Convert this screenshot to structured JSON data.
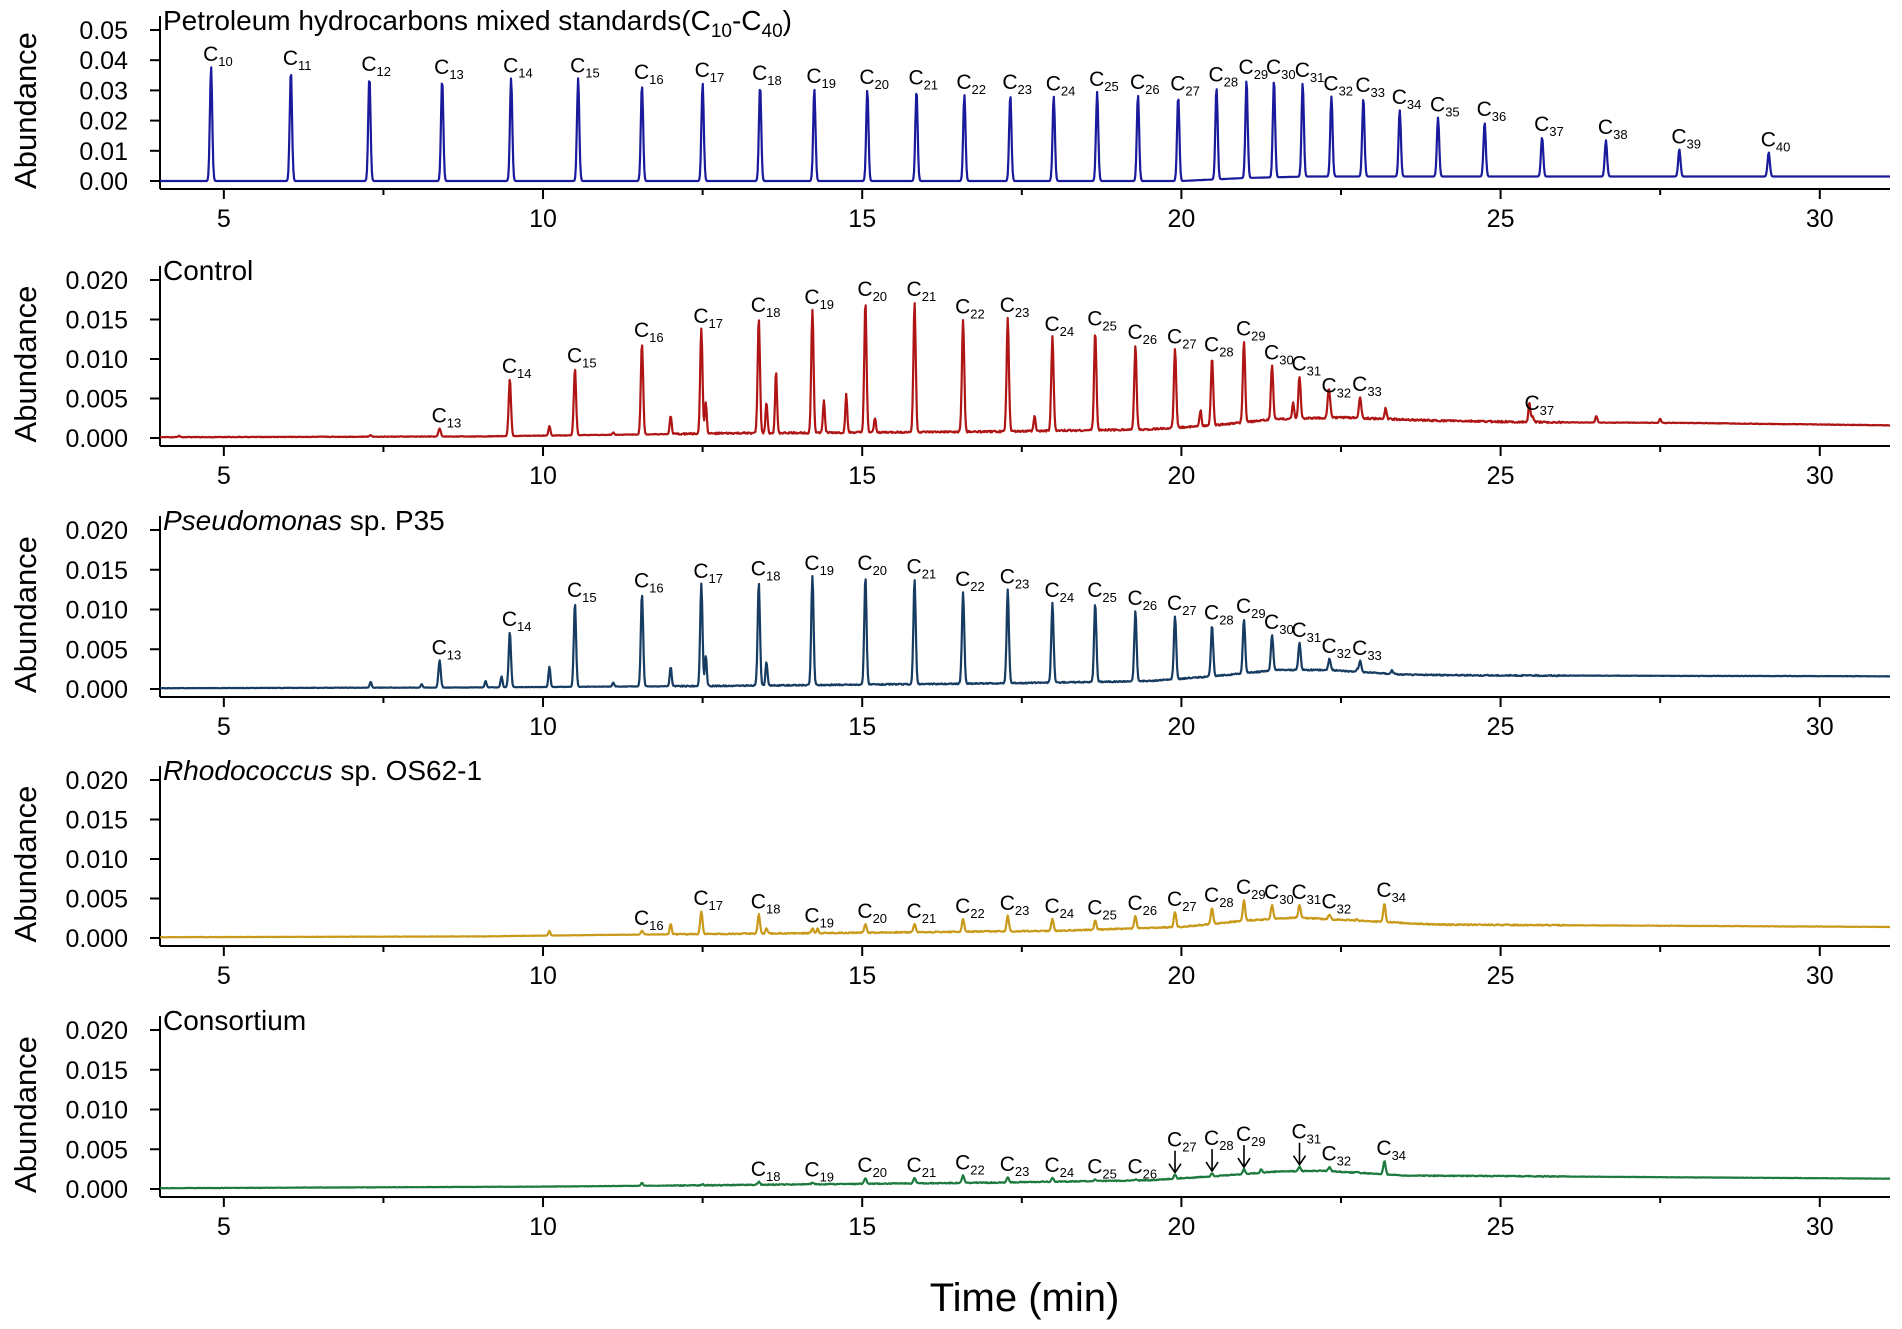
{
  "figure": {
    "x_axis_label": "Time (min)",
    "y_axis_label": "Abundance"
  },
  "chart_data": [
    {
      "type": "line",
      "title": "Petroleum hydrocarbons mixed standards(C10-C40)",
      "title_parts": [
        "Petroleum hydrocarbons mixed standards(C",
        "10",
        "-C",
        "40",
        ")"
      ],
      "title_italic": "",
      "color": "#1a1a9c",
      "xlabel": "Time (min)",
      "ylabel": "Abundance",
      "xlim": [
        4,
        31.1
      ],
      "ylim": [
        0,
        0.05
      ],
      "xticks": [
        5,
        10,
        15,
        20,
        25,
        30
      ],
      "yticks": [
        "0.00",
        "0.01",
        "0.02",
        "0.03",
        "0.04",
        "0.05"
      ],
      "baseline": [
        [
          4,
          0
        ],
        [
          20,
          0.0
        ],
        [
          21,
          0.001
        ],
        [
          22,
          0.0015
        ],
        [
          31.1,
          0.0015
        ]
      ],
      "noise": 0,
      "small_peaks": [],
      "peaks": [
        {
          "label": "10",
          "x": 4.8,
          "y": 0.0378
        },
        {
          "label": "11",
          "x": 6.05,
          "y": 0.0365
        },
        {
          "label": "12",
          "x": 7.28,
          "y": 0.0345
        },
        {
          "label": "13",
          "x": 8.42,
          "y": 0.0335
        },
        {
          "label": "14",
          "x": 9.5,
          "y": 0.034
        },
        {
          "label": "15",
          "x": 10.55,
          "y": 0.034
        },
        {
          "label": "16",
          "x": 11.55,
          "y": 0.0318
        },
        {
          "label": "17",
          "x": 12.5,
          "y": 0.0325
        },
        {
          "label": "18",
          "x": 13.4,
          "y": 0.0315
        },
        {
          "label": "19",
          "x": 14.25,
          "y": 0.0305
        },
        {
          "label": "20",
          "x": 15.08,
          "y": 0.0302
        },
        {
          "label": "21",
          "x": 15.85,
          "y": 0.03
        },
        {
          "label": "22",
          "x": 16.6,
          "y": 0.0285
        },
        {
          "label": "23",
          "x": 17.32,
          "y": 0.0285
        },
        {
          "label": "24",
          "x": 18.0,
          "y": 0.028
        },
        {
          "label": "25",
          "x": 18.68,
          "y": 0.0295
        },
        {
          "label": "26",
          "x": 19.32,
          "y": 0.0285
        },
        {
          "label": "27",
          "x": 19.95,
          "y": 0.028
        },
        {
          "label": "28",
          "x": 20.55,
          "y": 0.031
        },
        {
          "label": "29",
          "x": 21.02,
          "y": 0.0335
        },
        {
          "label": "30",
          "x": 21.45,
          "y": 0.0335
        },
        {
          "label": "31",
          "x": 21.9,
          "y": 0.0325
        },
        {
          "label": "32",
          "x": 22.35,
          "y": 0.028
        },
        {
          "label": "33",
          "x": 22.85,
          "y": 0.0275
        },
        {
          "label": "34",
          "x": 23.42,
          "y": 0.0235
        },
        {
          "label": "35",
          "x": 24.02,
          "y": 0.021
        },
        {
          "label": "36",
          "x": 24.75,
          "y": 0.0195
        },
        {
          "label": "37",
          "x": 25.65,
          "y": 0.0145
        },
        {
          "label": "38",
          "x": 26.65,
          "y": 0.0135
        },
        {
          "label": "39",
          "x": 27.8,
          "y": 0.0105
        },
        {
          "label": "40",
          "x": 29.2,
          "y": 0.0095
        }
      ]
    },
    {
      "type": "line",
      "title": "Control",
      "title_parts": [
        "Control"
      ],
      "title_italic": "",
      "color": "#b01515",
      "xlabel": "Time (min)",
      "ylabel": "Abundance",
      "xlim": [
        4,
        31.1
      ],
      "ylim": [
        0,
        0.02
      ],
      "xticks": [
        5,
        10,
        15,
        20,
        25,
        30
      ],
      "yticks": [
        "0.000",
        "0.005",
        "0.010",
        "0.015",
        "0.020"
      ],
      "baseline": [
        [
          4,
          0.0001
        ],
        [
          9,
          0.0002
        ],
        [
          13,
          0.0006
        ],
        [
          17,
          0.0008
        ],
        [
          19.5,
          0.0011
        ],
        [
          20.5,
          0.0016
        ],
        [
          21.5,
          0.0024
        ],
        [
          22.5,
          0.0026
        ],
        [
          24,
          0.0022
        ],
        [
          25.5,
          0.002
        ],
        [
          28,
          0.0019
        ],
        [
          31.1,
          0.0016
        ]
      ],
      "noise": 0.00022,
      "small_peaks": [
        {
          "x": 4.3,
          "y": 0.0003
        },
        {
          "x": 7.3,
          "y": 0.0004
        },
        {
          "x": 10.1,
          "y": 0.0015
        },
        {
          "x": 11.1,
          "y": 0.0007
        },
        {
          "x": 12.0,
          "y": 0.0028
        },
        {
          "x": 12.55,
          "y": 0.0045
        },
        {
          "x": 13.5,
          "y": 0.0045
        },
        {
          "x": 13.65,
          "y": 0.0085
        },
        {
          "x": 14.4,
          "y": 0.0048
        },
        {
          "x": 14.75,
          "y": 0.0055
        },
        {
          "x": 15.2,
          "y": 0.0025
        },
        {
          "x": 17.7,
          "y": 0.0028
        },
        {
          "x": 20.3,
          "y": 0.0035
        },
        {
          "x": 21.75,
          "y": 0.0045
        },
        {
          "x": 22.3,
          "y": 0.0045
        },
        {
          "x": 23.2,
          "y": 0.0038
        },
        {
          "x": 25.45,
          "y": 0.0045
        },
        {
          "x": 26.5,
          "y": 0.0028
        },
        {
          "x": 27.5,
          "y": 0.0024
        }
      ],
      "peaks": [
        {
          "label": "13",
          "x": 8.38,
          "y": 0.0012
        },
        {
          "label": "14",
          "x": 9.48,
          "y": 0.0075
        },
        {
          "label": "15",
          "x": 10.5,
          "y": 0.0088
        },
        {
          "label": "16",
          "x": 11.55,
          "y": 0.012
        },
        {
          "label": "17",
          "x": 12.48,
          "y": 0.0138
        },
        {
          "label": "18",
          "x": 13.38,
          "y": 0.0152
        },
        {
          "label": "19",
          "x": 14.22,
          "y": 0.0162
        },
        {
          "label": "20",
          "x": 15.05,
          "y": 0.0172
        },
        {
          "label": "21",
          "x": 15.82,
          "y": 0.0172
        },
        {
          "label": "22",
          "x": 16.58,
          "y": 0.015
        },
        {
          "label": "23",
          "x": 17.28,
          "y": 0.0152
        },
        {
          "label": "24",
          "x": 17.98,
          "y": 0.0128
        },
        {
          "label": "25",
          "x": 18.65,
          "y": 0.0135
        },
        {
          "label": "26",
          "x": 19.28,
          "y": 0.0118
        },
        {
          "label": "27",
          "x": 19.9,
          "y": 0.0112
        },
        {
          "label": "28",
          "x": 20.48,
          "y": 0.0102
        },
        {
          "label": "29",
          "x": 20.98,
          "y": 0.0122
        },
        {
          "label": "30",
          "x": 21.42,
          "y": 0.0092
        },
        {
          "label": "31",
          "x": 21.85,
          "y": 0.0078
        },
        {
          "label": "32",
          "x": 22.32,
          "y": 0.005
        },
        {
          "label": "33",
          "x": 22.8,
          "y": 0.0052
        },
        {
          "label": "37",
          "x": 25.5,
          "y": 0.0028
        }
      ]
    },
    {
      "type": "line",
      "title": "Pseudomonas sp. P35",
      "title_parts": [
        "Pseudomonas",
        " sp. P35"
      ],
      "title_italic": "Pseudomonas",
      "color": "#173c62",
      "xlabel": "Time (min)",
      "ylabel": "Abundance",
      "xlim": [
        4,
        31.1
      ],
      "ylim": [
        0,
        0.02
      ],
      "xticks": [
        5,
        10,
        15,
        20,
        25,
        30
      ],
      "yticks": [
        "0.000",
        "0.005",
        "0.010",
        "0.015",
        "0.020"
      ],
      "baseline": [
        [
          4,
          0.0001
        ],
        [
          9,
          0.0002
        ],
        [
          13,
          0.0004
        ],
        [
          17,
          0.0007
        ],
        [
          19.5,
          0.001
        ],
        [
          20.5,
          0.0016
        ],
        [
          21.5,
          0.0024
        ],
        [
          22.3,
          0.0024
        ],
        [
          23.5,
          0.0018
        ],
        [
          25,
          0.0017
        ],
        [
          31.1,
          0.0016
        ]
      ],
      "noise": 0.00015,
      "small_peaks": [
        {
          "x": 7.3,
          "y": 0.0009
        },
        {
          "x": 8.1,
          "y": 0.0006
        },
        {
          "x": 9.1,
          "y": 0.001
        },
        {
          "x": 9.35,
          "y": 0.0016
        },
        {
          "x": 10.1,
          "y": 0.0028
        },
        {
          "x": 11.1,
          "y": 0.0008
        },
        {
          "x": 12.0,
          "y": 0.0028
        },
        {
          "x": 12.55,
          "y": 0.0042
        },
        {
          "x": 13.5,
          "y": 0.0035
        },
        {
          "x": 22.75,
          "y": 0.0025
        },
        {
          "x": 23.3,
          "y": 0.0024
        }
      ],
      "peaks": [
        {
          "label": "13",
          "x": 8.38,
          "y": 0.0036
        },
        {
          "label": "14",
          "x": 9.48,
          "y": 0.0072
        },
        {
          "label": "15",
          "x": 10.5,
          "y": 0.0108
        },
        {
          "label": "16",
          "x": 11.55,
          "y": 0.012
        },
        {
          "label": "17",
          "x": 12.48,
          "y": 0.0132
        },
        {
          "label": "18",
          "x": 13.38,
          "y": 0.0135
        },
        {
          "label": "19",
          "x": 14.22,
          "y": 0.0142
        },
        {
          "label": "20",
          "x": 15.05,
          "y": 0.0142
        },
        {
          "label": "21",
          "x": 15.82,
          "y": 0.0138
        },
        {
          "label": "22",
          "x": 16.58,
          "y": 0.0122
        },
        {
          "label": "23",
          "x": 17.28,
          "y": 0.0125
        },
        {
          "label": "24",
          "x": 17.98,
          "y": 0.0108
        },
        {
          "label": "25",
          "x": 18.65,
          "y": 0.0108
        },
        {
          "label": "26",
          "x": 19.28,
          "y": 0.0098
        },
        {
          "label": "27",
          "x": 19.9,
          "y": 0.0092
        },
        {
          "label": "28",
          "x": 20.48,
          "y": 0.008
        },
        {
          "label": "29",
          "x": 20.98,
          "y": 0.0088
        },
        {
          "label": "30",
          "x": 21.42,
          "y": 0.0068
        },
        {
          "label": "31",
          "x": 21.85,
          "y": 0.0058
        },
        {
          "label": "32",
          "x": 22.32,
          "y": 0.0038
        },
        {
          "label": "33",
          "x": 22.8,
          "y": 0.0035
        }
      ]
    },
    {
      "type": "line",
      "title": "Rhodococcus sp. OS62-1",
      "title_parts": [
        "Rhodococcus",
        " sp. OS62-1"
      ],
      "title_italic": "Rhodococcus",
      "color": "#c99a1a",
      "xlabel": "Time (min)",
      "ylabel": "Abundance",
      "xlim": [
        4,
        31.1
      ],
      "ylim": [
        0,
        0.02
      ],
      "xticks": [
        5,
        10,
        15,
        20,
        25,
        30
      ],
      "yticks": [
        "0.000",
        "0.005",
        "0.010",
        "0.015",
        "0.020"
      ],
      "baseline": [
        [
          4,
          0.0001
        ],
        [
          9,
          0.0002
        ],
        [
          11,
          0.0004
        ],
        [
          14,
          0.0006
        ],
        [
          18,
          0.0009
        ],
        [
          20,
          0.0014
        ],
        [
          21,
          0.0022
        ],
        [
          21.8,
          0.0026
        ],
        [
          22.5,
          0.0023
        ],
        [
          24,
          0.0017
        ],
        [
          31.1,
          0.0014
        ]
      ],
      "noise": 0.00015,
      "small_peaks": [
        {
          "x": 10.1,
          "y": 0.0009
        },
        {
          "x": 12.0,
          "y": 0.0018
        },
        {
          "x": 13.5,
          "y": 0.0012
        },
        {
          "x": 14.3,
          "y": 0.0012
        },
        {
          "x": 22.75,
          "y": 0.0024
        }
      ],
      "peaks": [
        {
          "label": "16",
          "x": 11.55,
          "y": 0.0009
        },
        {
          "label": "17",
          "x": 12.48,
          "y": 0.0034
        },
        {
          "label": "18",
          "x": 13.38,
          "y": 0.003
        },
        {
          "label": "19",
          "x": 14.22,
          "y": 0.0012
        },
        {
          "label": "20",
          "x": 15.05,
          "y": 0.0018
        },
        {
          "label": "21",
          "x": 15.82,
          "y": 0.0018
        },
        {
          "label": "22",
          "x": 16.58,
          "y": 0.0024
        },
        {
          "label": "23",
          "x": 17.28,
          "y": 0.0028
        },
        {
          "label": "24",
          "x": 17.98,
          "y": 0.0024
        },
        {
          "label": "25",
          "x": 18.65,
          "y": 0.0022
        },
        {
          "label": "26",
          "x": 19.28,
          "y": 0.0028
        },
        {
          "label": "27",
          "x": 19.9,
          "y": 0.0033
        },
        {
          "label": "28",
          "x": 20.48,
          "y": 0.0038
        },
        {
          "label": "29",
          "x": 20.98,
          "y": 0.0048
        },
        {
          "label": "30",
          "x": 21.42,
          "y": 0.0042
        },
        {
          "label": "31",
          "x": 21.85,
          "y": 0.0042
        },
        {
          "label": "32",
          "x": 22.32,
          "y": 0.003
        },
        {
          "label": "34",
          "x": 23.18,
          "y": 0.0044
        }
      ]
    },
    {
      "type": "line",
      "title": "Consortium",
      "title_parts": [
        "Consortium"
      ],
      "title_italic": "",
      "color": "#1d7a3d",
      "xlabel": "Time (min)",
      "ylabel": "Abundance",
      "xlim": [
        4,
        31.1
      ],
      "ylim": [
        0,
        0.02
      ],
      "xticks": [
        5,
        10,
        15,
        20,
        25,
        30
      ],
      "yticks": [
        "0.000",
        "0.005",
        "0.010",
        "0.015",
        "0.020"
      ],
      "baseline": [
        [
          4,
          0.0001
        ],
        [
          7,
          0.0002
        ],
        [
          10,
          0.0003
        ],
        [
          13,
          0.0005
        ],
        [
          17,
          0.0008
        ],
        [
          19.5,
          0.0011
        ],
        [
          20.5,
          0.0016
        ],
        [
          21.5,
          0.0022
        ],
        [
          22.2,
          0.0023
        ],
        [
          23.5,
          0.0017
        ],
        [
          31.1,
          0.0013
        ]
      ],
      "noise": 0.00012,
      "small_peaks": [
        {
          "x": 11.55,
          "y": 0.0008
        },
        {
          "x": 12.5,
          "y": 0.0006
        },
        {
          "x": 21.25,
          "y": 0.0025
        },
        {
          "x": 22.75,
          "y": 0.0022
        }
      ],
      "arrows": [
        "27",
        "28",
        "29",
        "31"
      ],
      "peaks": [
        {
          "label": "18",
          "x": 13.38,
          "y": 0.0009
        },
        {
          "label": "19",
          "x": 14.22,
          "y": 0.0008
        },
        {
          "label": "20",
          "x": 15.05,
          "y": 0.0014
        },
        {
          "label": "21",
          "x": 15.82,
          "y": 0.0014
        },
        {
          "label": "22",
          "x": 16.58,
          "y": 0.0017
        },
        {
          "label": "23",
          "x": 17.28,
          "y": 0.0015
        },
        {
          "label": "24",
          "x": 17.98,
          "y": 0.0014
        },
        {
          "label": "25",
          "x": 18.65,
          "y": 0.0012
        },
        {
          "label": "26",
          "x": 19.28,
          "y": 0.0012
        },
        {
          "label": "27",
          "x": 19.9,
          "y": 0.0018
        },
        {
          "label": "28",
          "x": 20.48,
          "y": 0.002
        },
        {
          "label": "29",
          "x": 20.98,
          "y": 0.0025
        },
        {
          "label": "31",
          "x": 21.85,
          "y": 0.0028
        },
        {
          "label": "32",
          "x": 22.32,
          "y": 0.0028
        },
        {
          "label": "34",
          "x": 23.18,
          "y": 0.0035
        }
      ]
    }
  ]
}
